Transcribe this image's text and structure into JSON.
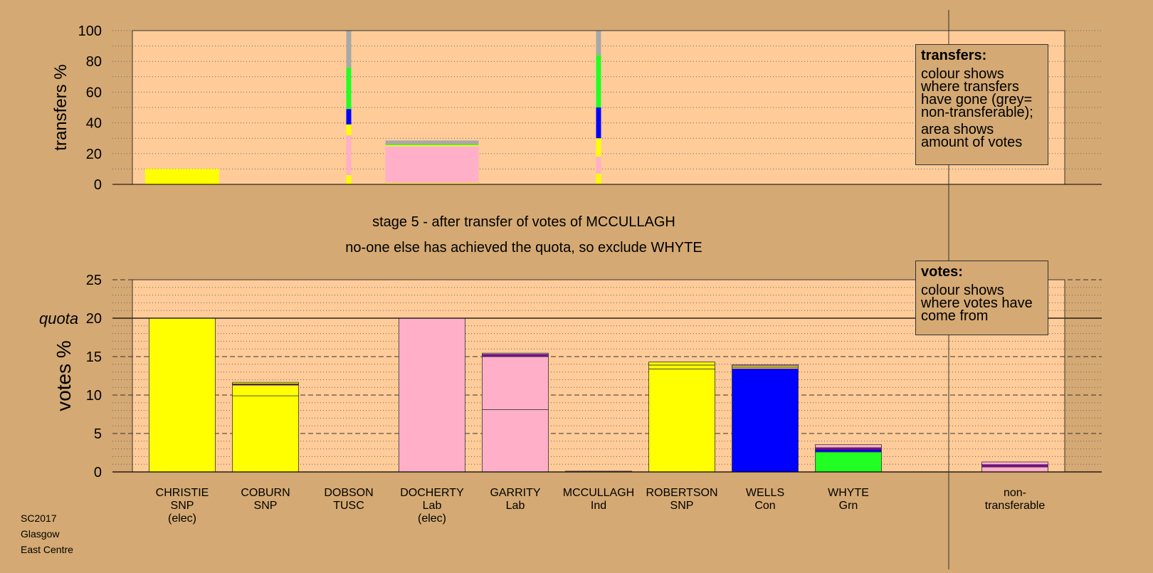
{
  "colors": {
    "background": "#d4a973",
    "plot_background": "#ffcc99",
    "SNP": "#ffff00",
    "Lab": "#ffb0c8",
    "Con": "#0000ff",
    "Grn": "#22ff22",
    "non_transferable": "#a8a8a8",
    "other": "#8800aa"
  },
  "stage_title": "stage 5 - after transfer of votes of MCCULLAGH",
  "stage_subtitle": "no-one else has achieved the quota, so exclude WHYTE",
  "transfers_legend": {
    "title": "transfers:",
    "body1": "colour shows where transfers have gone (grey= non-transferable);",
    "body2": "area shows amount of votes"
  },
  "votes_legend": {
    "title": "votes:",
    "body": "colour shows where votes have come from"
  },
  "footer": {
    "line1": "SC2017",
    "line2": "Glasgow",
    "line3": "East Centre"
  },
  "chart_data": [
    {
      "type": "bar",
      "ylabel": "transfers %",
      "ylim": [
        0,
        100
      ],
      "yticks": [
        0,
        20,
        40,
        60,
        80,
        100
      ],
      "grid": "dotted",
      "candidates": [
        {
          "name": "CHRISTIE",
          "segments": [
            {
              "party": "SNP",
              "value": 10
            }
          ]
        },
        {
          "name": "COBURN",
          "segments": []
        },
        {
          "name": "DOBSON",
          "segments": [
            {
              "party": "SNP",
              "value": 6
            },
            {
              "party": "Lab",
              "value": 26
            },
            {
              "party": "SNP",
              "value": 7
            },
            {
              "party": "Con",
              "value": 10
            },
            {
              "party": "Grn",
              "value": 27
            },
            {
              "party": "non_transferable",
              "value": 24
            }
          ]
        },
        {
          "name": "DOCHERTY",
          "segments": [
            {
              "party": "SNP",
              "value": 0.8
            },
            {
              "party": "Lab",
              "value": 24
            },
            {
              "party": "SNP",
              "value": 0.7
            },
            {
              "party": "Grn",
              "value": 0.5
            },
            {
              "party": "non_transferable",
              "value": 2.5
            }
          ]
        },
        {
          "name": "GARRITY",
          "segments": []
        },
        {
          "name": "MCCULLAGH",
          "segments": [
            {
              "party": "SNP",
              "value": 7
            },
            {
              "party": "Lab",
              "value": 11
            },
            {
              "party": "SNP",
              "value": 12
            },
            {
              "party": "Con",
              "value": 20
            },
            {
              "party": "Grn",
              "value": 34
            },
            {
              "party": "non_transferable",
              "value": 16
            }
          ]
        },
        {
          "name": "ROBERTSON",
          "segments": []
        },
        {
          "name": "WELLS",
          "segments": []
        },
        {
          "name": "WHYTE",
          "segments": []
        },
        {
          "name": "",
          "segments": []
        },
        {
          "name": "non-transferable",
          "segments": []
        }
      ]
    },
    {
      "type": "bar",
      "ylabel": "votes %",
      "ylim": [
        0,
        25
      ],
      "yticks": [
        0,
        5,
        10,
        15,
        20,
        25
      ],
      "quota": 20,
      "quota_label": "quota",
      "grid": "dashed",
      "candidates": [
        {
          "name": "CHRISTIE",
          "party": "SNP",
          "note": "(elec)",
          "segments": [
            {
              "party": "SNP",
              "value": 20
            }
          ]
        },
        {
          "name": "COBURN",
          "party": "SNP",
          "note": "",
          "segments": [
            {
              "party": "SNP",
              "value": 9.9
            },
            {
              "party": "SNP",
              "value": 1.4
            },
            {
              "party": "other",
              "value": 0.15
            },
            {
              "party": "SNP",
              "value": 0.2
            }
          ]
        },
        {
          "name": "DOBSON",
          "party": "TUSC",
          "note": "",
          "segments": []
        },
        {
          "name": "DOCHERTY",
          "party": "Lab",
          "note": "(elec)",
          "segments": [
            {
              "party": "Lab",
              "value": 20
            }
          ]
        },
        {
          "name": "GARRITY",
          "party": "Lab",
          "note": "",
          "segments": [
            {
              "party": "Lab",
              "value": 8.1
            },
            {
              "party": "Lab",
              "value": 6.9
            },
            {
              "party": "other",
              "value": 0.3
            },
            {
              "party": "Lab",
              "value": 0.15
            }
          ]
        },
        {
          "name": "MCCULLAGH",
          "party": "Ind",
          "note": "",
          "segments": [
            {
              "party": "Lab",
              "value": 0.1
            }
          ]
        },
        {
          "name": "ROBERTSON",
          "party": "SNP",
          "note": "",
          "segments": [
            {
              "party": "SNP",
              "value": 13.4
            },
            {
              "party": "SNP",
              "value": 0.5
            },
            {
              "party": "SNP",
              "value": 0.4
            }
          ]
        },
        {
          "name": "WELLS",
          "party": "Con",
          "note": "",
          "segments": [
            {
              "party": "Con",
              "value": 13.4
            },
            {
              "party": "Lab",
              "value": 0.2
            },
            {
              "party": "SNP",
              "value": 0.2
            },
            {
              "party": "Lab",
              "value": 0.15
            }
          ]
        },
        {
          "name": "WHYTE",
          "party": "Grn",
          "note": "",
          "segments": [
            {
              "party": "Grn",
              "value": 2.6
            },
            {
              "party": "Con",
              "value": 0.3
            },
            {
              "party": "other",
              "value": 0.25
            },
            {
              "party": "Lab",
              "value": 0.4
            }
          ]
        },
        {
          "name": "",
          "party": "",
          "note": "",
          "segments": []
        },
        {
          "name": "non-",
          "party": "transferable",
          "note": "",
          "segments": [
            {
              "party": "Lab",
              "value": 0.65
            },
            {
              "party": "other",
              "value": 0.3
            },
            {
              "party": "Lab",
              "value": 0.35
            }
          ]
        }
      ]
    }
  ]
}
